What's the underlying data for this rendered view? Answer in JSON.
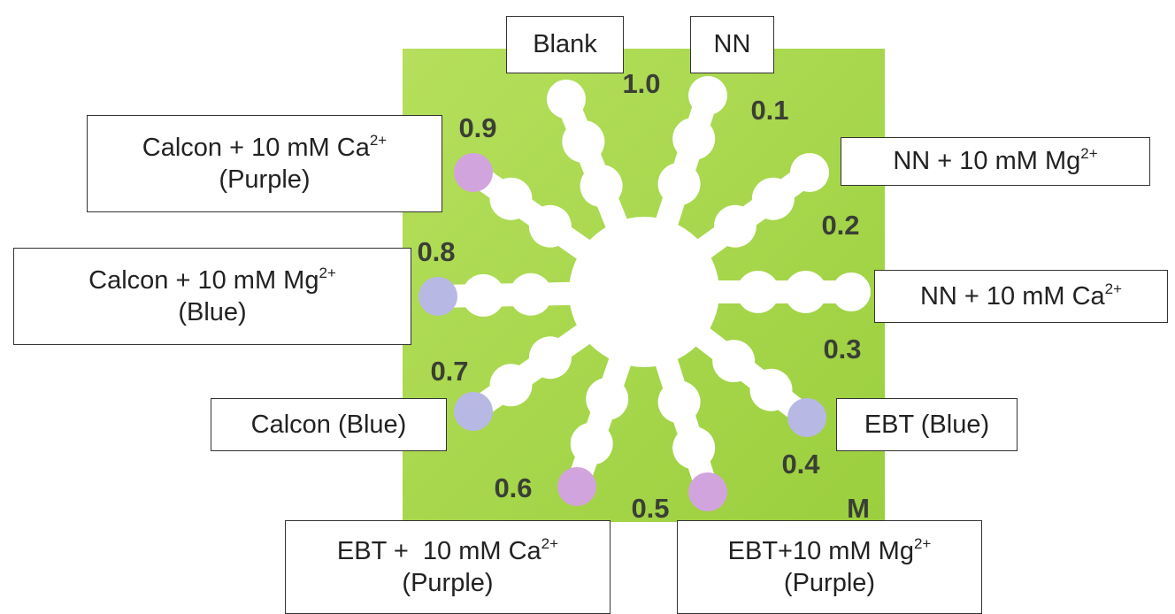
{
  "device": {
    "numbers": [
      "1.0",
      "0.1",
      "0.2",
      "0.3",
      "0.4",
      "0.5",
      "0.6",
      "0.7",
      "0.8",
      "0.9",
      "M"
    ]
  },
  "labels": [
    {
      "line1": "Blank"
    },
    {
      "line1": "NN"
    },
    {
      "line1": "Calcon + 10 mM Ca",
      "sup": "2+",
      "line2": "(Purple)"
    },
    {
      "line1": "NN + 10 mM Mg",
      "sup": "2+"
    },
    {
      "line1": "Calcon + 10 mM Mg",
      "sup": "2+",
      "line2": "(Blue)"
    },
    {
      "line1": "NN + 10 mM Ca",
      "sup": "2+"
    },
    {
      "line1": "Calcon (Blue)"
    },
    {
      "line1": "EBT (Blue)"
    },
    {
      "line1": "EBT +  10 mM Ca",
      "sup": "2+",
      "line2": "(Purple)"
    },
    {
      "line1": "EBT+10 mM Mg",
      "sup": "2+",
      "line2": "(Purple)"
    }
  ]
}
